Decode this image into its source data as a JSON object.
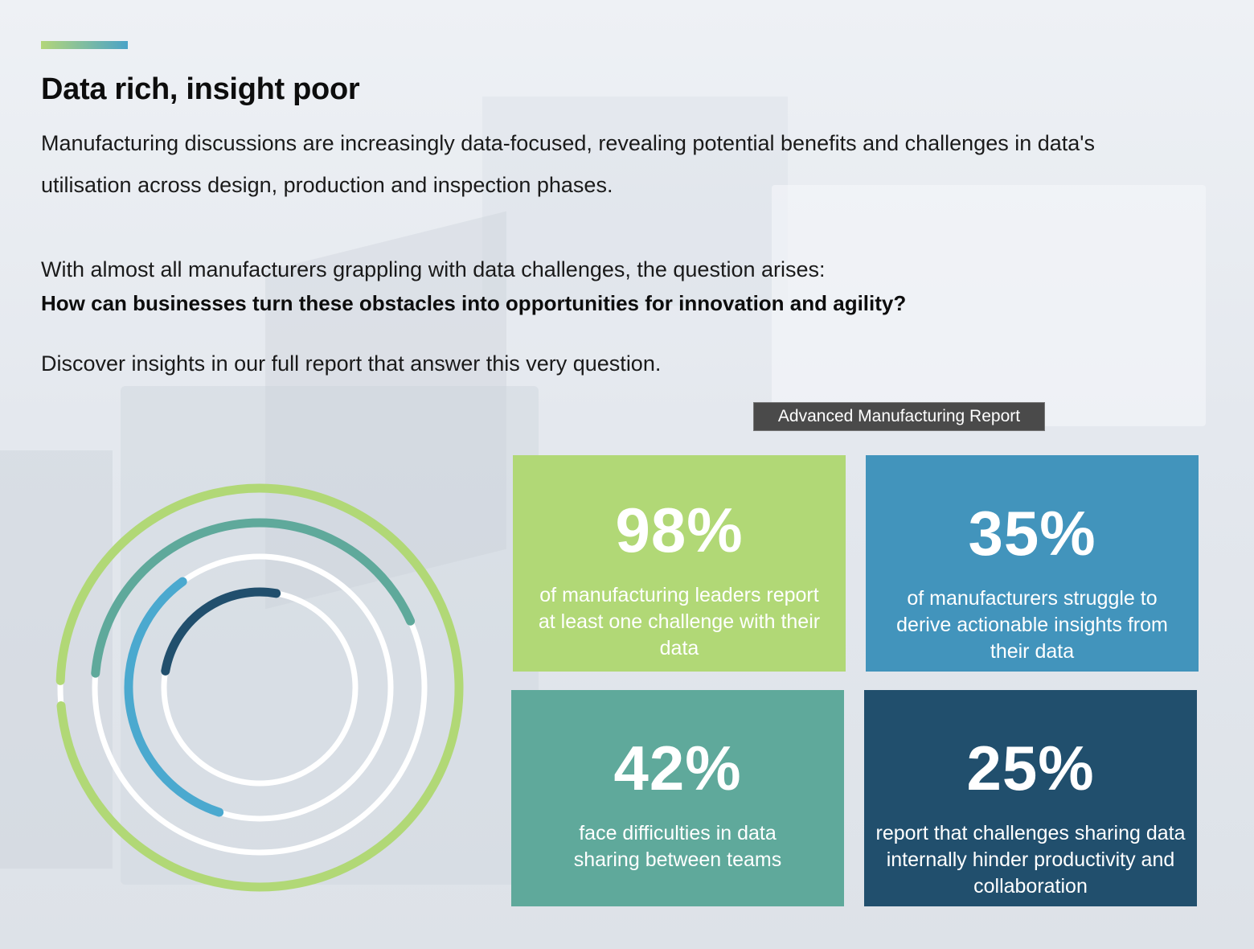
{
  "header": {
    "title": "Data rich, insight poor",
    "intro": "Manufacturing discussions are increasingly data-focused, revealing potential benefits and challenges in data's utilisation across design, production and inspection phases.",
    "paragraph2": "With almost all manufacturers grappling with data challenges, the question arises:",
    "question": "How can businesses turn these obstacles into opportunities for innovation and agility?",
    "discover": "Discover insights in our full report that answer this very question.",
    "tooltip": "Advanced Manufacturing Report"
  },
  "colors": {
    "green": "#b1d876",
    "blue": "#4294bc",
    "teal": "#5fa99b",
    "navy": "#214f6d",
    "white": "#ffffff"
  },
  "chart_data": {
    "type": "table",
    "stats": [
      {
        "value": "98%",
        "number": 98,
        "desc": "of manufacturing leaders report at least one challenge with their data",
        "color": "#b1d876"
      },
      {
        "value": "35%",
        "number": 35,
        "desc": "of manufacturers struggle to derive actionable insights from their data",
        "color": "#4294bc"
      },
      {
        "value": "42%",
        "number": 42,
        "desc": "face difficulties in data sharing between teams",
        "color": "#5fa99b"
      },
      {
        "value": "25%",
        "number": 25,
        "desc": "report that challenges sharing data internally hinder productivity and collaboration",
        "color": "#214f6d"
      }
    ],
    "rings": [
      {
        "percent": 98,
        "color": "#b1d876"
      },
      {
        "percent": 42,
        "color": "#5fa99b"
      },
      {
        "percent": 35,
        "color": "#4ba9cf"
      },
      {
        "percent": 25,
        "color": "#214f6d"
      }
    ]
  }
}
